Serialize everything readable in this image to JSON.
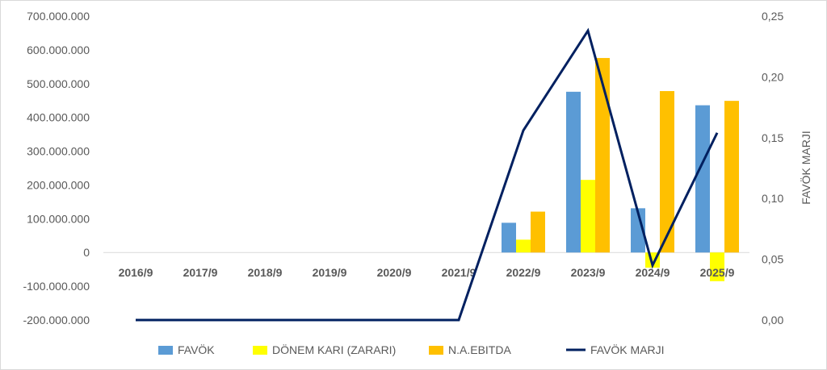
{
  "chart_data": {
    "type": "bar",
    "categories": [
      "2016/9",
      "2017/9",
      "2018/9",
      "2019/9",
      "2020/9",
      "2021/9",
      "2022/9",
      "2023/9",
      "2024/9",
      "2025/9"
    ],
    "series": [
      {
        "name": "FAVÖK",
        "type": "bar",
        "axis": "left",
        "color": "#5b9bd5",
        "values": [
          0,
          0,
          0,
          0,
          0,
          0,
          88000000,
          476000000,
          131000000,
          436000000
        ]
      },
      {
        "name": "DÖNEM KARI (ZARARI)",
        "type": "bar",
        "axis": "left",
        "color": "#ffff00",
        "values": [
          0,
          0,
          0,
          0,
          0,
          0,
          38000000,
          215000000,
          -45000000,
          -85000000
        ]
      },
      {
        "name": "N.A.EBITDA",
        "type": "bar",
        "axis": "left",
        "color": "#ffc000",
        "values": [
          0,
          0,
          0,
          0,
          0,
          0,
          121000000,
          576000000,
          478000000,
          449000000
        ]
      },
      {
        "name": "FAVÖK MARJI",
        "type": "line",
        "axis": "right",
        "color": "#002060",
        "values": [
          0,
          0,
          0,
          0,
          0,
          0,
          0.156,
          0.238,
          0.045,
          0.154
        ]
      }
    ],
    "y_left": {
      "min": -200000000,
      "max": 700000000,
      "step": 100000000,
      "tick_labels": [
        "-200.000.000",
        "-100.000.000",
        "0",
        "100.000.000",
        "200.000.000",
        "300.000.000",
        "400.000.000",
        "500.000.000",
        "600.000.000",
        "700.000.000"
      ]
    },
    "y_right": {
      "label": "FAVÖK MARJI",
      "min": 0,
      "max": 0.25,
      "step": 0.05,
      "tick_labels": [
        "0,00",
        "0,05",
        "0,10",
        "0,15",
        "0,20",
        "0,25"
      ]
    },
    "grid": false,
    "legend_position": "bottom"
  }
}
